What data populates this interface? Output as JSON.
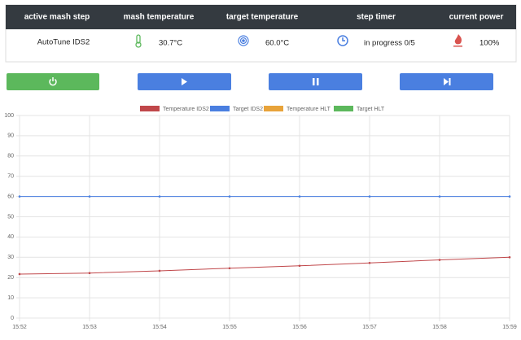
{
  "table": {
    "headers": [
      "active mash step",
      "mash temperature",
      "target temperature",
      "step timer",
      "current power"
    ],
    "row": [
      "AutoTune IDS2",
      "30.7°C",
      "60.0°C",
      "in progress 0/5",
      "100%"
    ]
  },
  "chart_data": {
    "type": "line",
    "categories": [
      "15:52",
      "15:53",
      "15:54",
      "15:55",
      "15:56",
      "15:57",
      "15:58",
      "15:59"
    ],
    "series": [
      {
        "name": "Temperature IDS2",
        "color": "#c0474a",
        "values": [
          21.7,
          22.2,
          23.3,
          24.6,
          25.8,
          27.2,
          28.7,
          30.0
        ]
      },
      {
        "name": "Target IDS2",
        "color": "#4a7fe0",
        "values": [
          60,
          60,
          60,
          60,
          60,
          60,
          60,
          60
        ]
      },
      {
        "name": "Temperature HLT",
        "color": "#e8a33a",
        "values": [
          null,
          null,
          null,
          null,
          null,
          null,
          null,
          null
        ]
      },
      {
        "name": "Target HLT",
        "color": "#5cb85c",
        "values": [
          null,
          null,
          null,
          null,
          null,
          null,
          null,
          null
        ]
      }
    ],
    "ylim": [
      0,
      100
    ],
    "yticks": [
      0,
      10,
      20,
      30,
      40,
      50,
      60,
      70,
      80,
      90,
      100
    ],
    "grid": true
  }
}
